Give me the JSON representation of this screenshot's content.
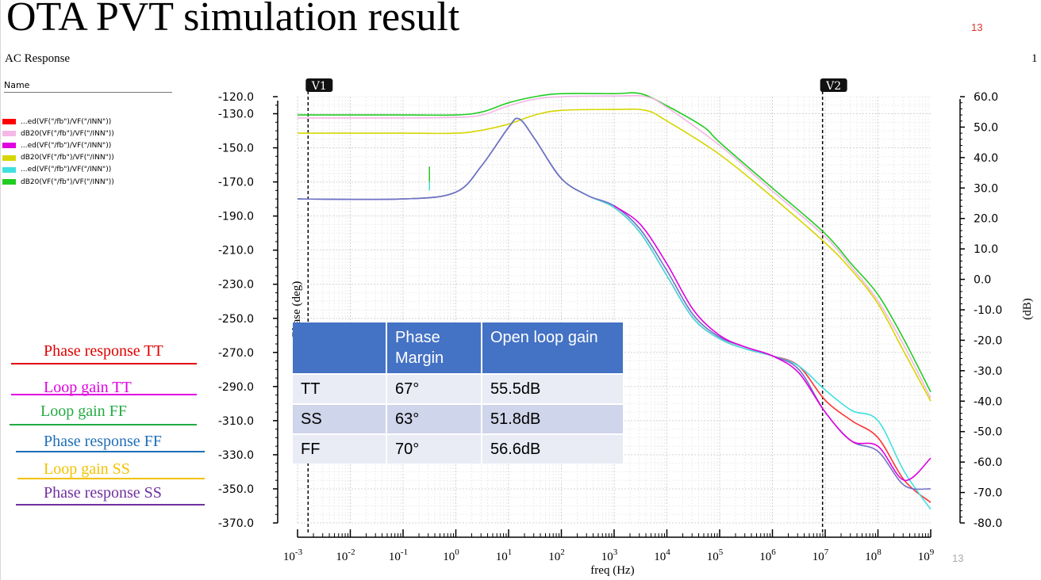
{
  "slide": {
    "title": "OTA PVT simulation result",
    "page_number_top": "13",
    "page_number_bottom": "13",
    "colors": {
      "page_number": "#e03030"
    }
  },
  "panel": {
    "title": "AC Response",
    "right_number": "1",
    "legend_header": "Name",
    "legend": [
      {
        "label": "...ed(VF(\"/fb\")/VF(\"/INN\"))",
        "color": "#ff0000"
      },
      {
        "label": "dB20(VF(\"/fb\")/VF(\"/INN\"))",
        "color": "#f5b8e6"
      },
      {
        "label": "...ed(VF(\"/fb\")/VF(\"/INN\"))",
        "color": "#e000e0"
      },
      {
        "label": "dB20(VF(\"/fb\")/VF(\"/INN\"))",
        "color": "#d6d600"
      },
      {
        "label": "...ed(VF(\"/fb\")/VF(\"/INN\"))",
        "color": "#40e0e0"
      },
      {
        "label": "dB20(VF(\"/fb\")/VF(\"/INN\"))",
        "color": "#22cc22"
      }
    ]
  },
  "annotations": [
    {
      "label": "Phase response TT",
      "color": "#e00000"
    },
    {
      "label": "Loop gain TT",
      "color": "#e000e0"
    },
    {
      "label": "Loop gain FF",
      "color": "#22aa44"
    },
    {
      "label": "Phase response FF",
      "color": "#1f6eb8"
    },
    {
      "label": "Loop gain SS",
      "color": "#f2c200"
    },
    {
      "label": "Phase response SS",
      "color": "#7030a0"
    }
  ],
  "table": {
    "headers": [
      "",
      "Phase Margin",
      "Open loop gain"
    ],
    "rows": [
      [
        "TT",
        "67°",
        "55.5dB"
      ],
      [
        "SS",
        "63°",
        "51.8dB"
      ],
      [
        "FF",
        "70°",
        "56.6dB"
      ]
    ]
  },
  "chart_data": {
    "type": "line",
    "title": "AC Response",
    "xlabel": "freq (Hz)",
    "ylabel_left": "Phase (deg)",
    "ylabel_right": "(dB)",
    "x_scale": "log",
    "xlim_exp": [
      -3,
      9
    ],
    "x_tick_base": "10",
    "x_tick_exponents": [
      "-3",
      "-2",
      "-1",
      "0",
      "1",
      "2",
      "3",
      "4",
      "5",
      "6",
      "7",
      "8",
      "9"
    ],
    "ylim_left": [
      -370,
      -120
    ],
    "yticks_left": [
      "-120.0",
      "-130.0",
      "-150.0",
      "-170.0",
      "-190.0",
      "-210.0",
      "-230.0",
      "-250.0",
      "-270.0",
      "-290.0",
      "-310.0",
      "-330.0",
      "-350.0",
      "-370.0"
    ],
    "ylim_right": [
      -80,
      60
    ],
    "yticks_right": [
      "60.0",
      "50.0",
      "40.0",
      "30.0",
      "20.0",
      "10.0",
      "0.0",
      "-10.0",
      "-20.0",
      "-30.0",
      "-40.0",
      "-50.0",
      "-60.0",
      "-70.0",
      "-80.0"
    ],
    "grid": true,
    "markers": [
      {
        "label": "V1",
        "x_exp": -2.8
      },
      {
        "label": "V2",
        "x_exp": 6.95
      }
    ],
    "series": [
      {
        "name": "Loop gain FF",
        "axis": "right",
        "color": "#22cc22",
        "points": [
          [
            -3,
            54
          ],
          [
            -1,
            54
          ],
          [
            0,
            54
          ],
          [
            0.5,
            55
          ],
          [
            1,
            58
          ],
          [
            1.5,
            60
          ],
          [
            2,
            61
          ],
          [
            3,
            61
          ],
          [
            3.5,
            61
          ],
          [
            4,
            57
          ],
          [
            4.7,
            50
          ],
          [
            5,
            45
          ],
          [
            6,
            30
          ],
          [
            7,
            15
          ],
          [
            7.5,
            5
          ],
          [
            8,
            -5
          ],
          [
            8.5,
            -20
          ],
          [
            9,
            -37
          ]
        ]
      },
      {
        "name": "Loop gain TT",
        "axis": "right",
        "color": "#f5b8e6",
        "points": [
          [
            -3,
            53
          ],
          [
            -1,
            53
          ],
          [
            0,
            53.2
          ],
          [
            0.5,
            54
          ],
          [
            1,
            57
          ],
          [
            1.5,
            59.2
          ],
          [
            2,
            60
          ],
          [
            3,
            60.2
          ],
          [
            3.6,
            60
          ],
          [
            4,
            56.5
          ],
          [
            5,
            44
          ],
          [
            6,
            29
          ],
          [
            7,
            14
          ],
          [
            7.5,
            4
          ],
          [
            8,
            -7
          ],
          [
            8.5,
            -22
          ],
          [
            9,
            -39
          ]
        ]
      },
      {
        "name": "Loop gain SS",
        "axis": "right",
        "color": "#d6d600",
        "points": [
          [
            -3,
            48
          ],
          [
            -1,
            48
          ],
          [
            0,
            48
          ],
          [
            0.5,
            49
          ],
          [
            1,
            51
          ],
          [
            1.5,
            54
          ],
          [
            2,
            55.5
          ],
          [
            3,
            55.8
          ],
          [
            3.6,
            55.5
          ],
          [
            4,
            52
          ],
          [
            5,
            41
          ],
          [
            6,
            27
          ],
          [
            7,
            12
          ],
          [
            7.5,
            3
          ],
          [
            8,
            -8
          ],
          [
            8.5,
            -24
          ],
          [
            9,
            -40
          ]
        ]
      },
      {
        "name": "Phase response TT",
        "axis": "left",
        "color": "#ff3333",
        "points": [
          [
            -3,
            -180
          ],
          [
            -1,
            -180
          ],
          [
            0,
            -176
          ],
          [
            0.5,
            -160
          ],
          [
            1,
            -138
          ],
          [
            1.2,
            -133
          ],
          [
            1.5,
            -145
          ],
          [
            2,
            -168
          ],
          [
            2.5,
            -178
          ],
          [
            3,
            -185
          ],
          [
            3.5,
            -200
          ],
          [
            4,
            -225
          ],
          [
            4.5,
            -250
          ],
          [
            5,
            -262
          ],
          [
            5.5,
            -268
          ],
          [
            6,
            -272
          ],
          [
            6.5,
            -278
          ],
          [
            7,
            -298
          ],
          [
            7.5,
            -310
          ],
          [
            8,
            -320
          ],
          [
            8.5,
            -345
          ],
          [
            9,
            -358
          ]
        ]
      },
      {
        "name": "Phase response FF",
        "axis": "left",
        "color": "#40e0e0",
        "points": [
          [
            -3,
            -180
          ],
          [
            -1,
            -180
          ],
          [
            0,
            -176
          ],
          [
            0.5,
            -160
          ],
          [
            1,
            -138
          ],
          [
            1.2,
            -133
          ],
          [
            1.5,
            -145
          ],
          [
            2,
            -168
          ],
          [
            2.5,
            -178
          ],
          [
            3,
            -185
          ],
          [
            3.5,
            -200
          ],
          [
            4,
            -225
          ],
          [
            4.5,
            -250
          ],
          [
            5,
            -262
          ],
          [
            5.5,
            -268
          ],
          [
            6,
            -272
          ],
          [
            6.5,
            -278
          ],
          [
            7,
            -292
          ],
          [
            7.5,
            -304
          ],
          [
            8,
            -310
          ],
          [
            8.5,
            -340
          ],
          [
            9,
            -362
          ]
        ]
      },
      {
        "name": "Phase response SS",
        "axis": "left",
        "color": "#7070c8",
        "points": [
          [
            -3,
            -180
          ],
          [
            -1,
            -180
          ],
          [
            0,
            -176
          ],
          [
            0.5,
            -160
          ],
          [
            1,
            -138
          ],
          [
            1.2,
            -133
          ],
          [
            1.5,
            -145
          ],
          [
            2,
            -168
          ],
          [
            2.5,
            -178
          ],
          [
            3,
            -184
          ],
          [
            3.5,
            -198
          ],
          [
            4,
            -222
          ],
          [
            4.5,
            -248
          ],
          [
            5,
            -261
          ],
          [
            5.5,
            -267
          ],
          [
            6,
            -272
          ],
          [
            6.5,
            -280
          ],
          [
            7,
            -305
          ],
          [
            7.5,
            -322
          ],
          [
            8,
            -328
          ],
          [
            8.5,
            -348
          ],
          [
            9,
            -350
          ]
        ]
      },
      {
        "name": "Loop gain TT (phase)",
        "axis": "left",
        "color": "#e000e0",
        "points": [
          [
            3,
            -184
          ],
          [
            3.5,
            -195
          ],
          [
            4,
            -218
          ],
          [
            4.5,
            -245
          ],
          [
            5,
            -260
          ],
          [
            5.5,
            -267
          ],
          [
            6,
            -272
          ],
          [
            6.5,
            -282
          ],
          [
            7,
            -305
          ],
          [
            7.5,
            -322
          ],
          [
            8,
            -325
          ],
          [
            8.5,
            -345
          ],
          [
            9,
            -332
          ]
        ]
      }
    ]
  }
}
